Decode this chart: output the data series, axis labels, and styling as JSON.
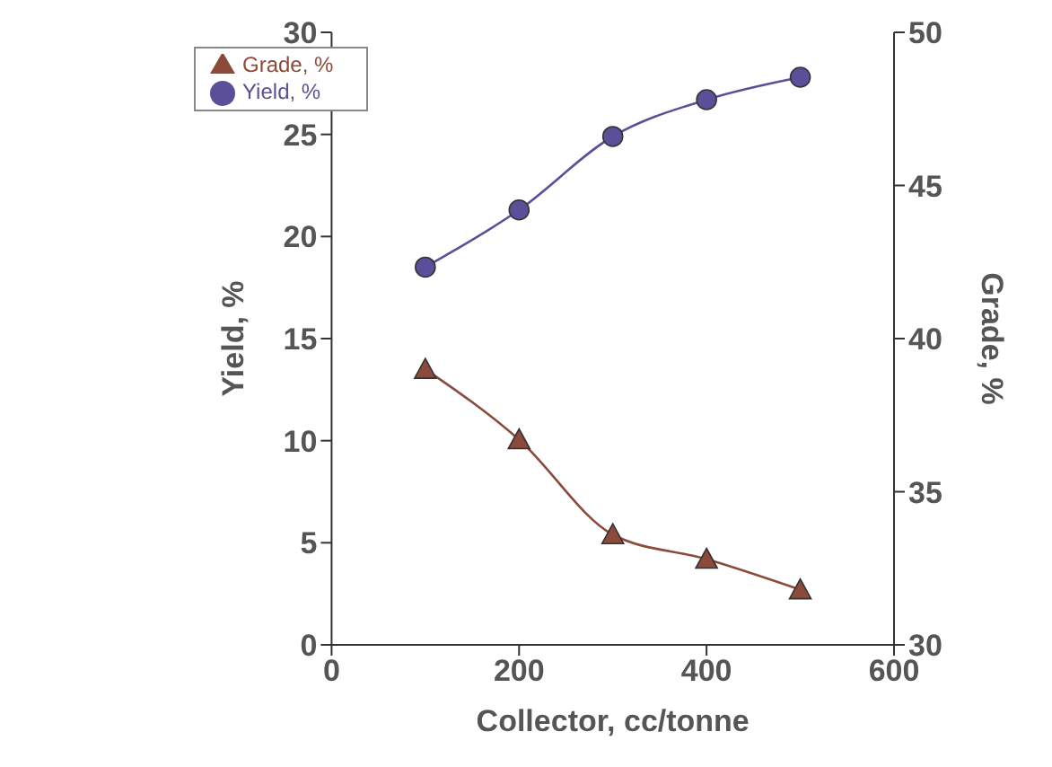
{
  "chart_data": {
    "type": "line",
    "xlabel": "Collector, cc/tonne",
    "ylabel": "Yield, %",
    "y2label": "Grade, %",
    "x": [
      100,
      200,
      300,
      400,
      500
    ],
    "series": [
      {
        "name": "Yield, %",
        "color": "#5b4f9a",
        "marker": "circle",
        "values": [
          18.5,
          21.3,
          24.9,
          26.7,
          27.8
        ]
      },
      {
        "name": "Grade, %",
        "color": "#8b4a3a",
        "marker": "triangle",
        "axis": "y2",
        "values": [
          39.0,
          36.7,
          33.6,
          32.8,
          31.8
        ]
      }
    ],
    "xlim": [
      0,
      600
    ],
    "xticks": [
      0,
      200,
      400,
      600
    ],
    "ylim": [
      0,
      30
    ],
    "yticks": [
      0,
      5,
      10,
      15,
      20,
      25,
      30
    ],
    "y2lim": [
      30,
      50
    ],
    "y2ticks": [
      30,
      35,
      40,
      45,
      50
    ],
    "grid": false,
    "legend": "top left"
  }
}
